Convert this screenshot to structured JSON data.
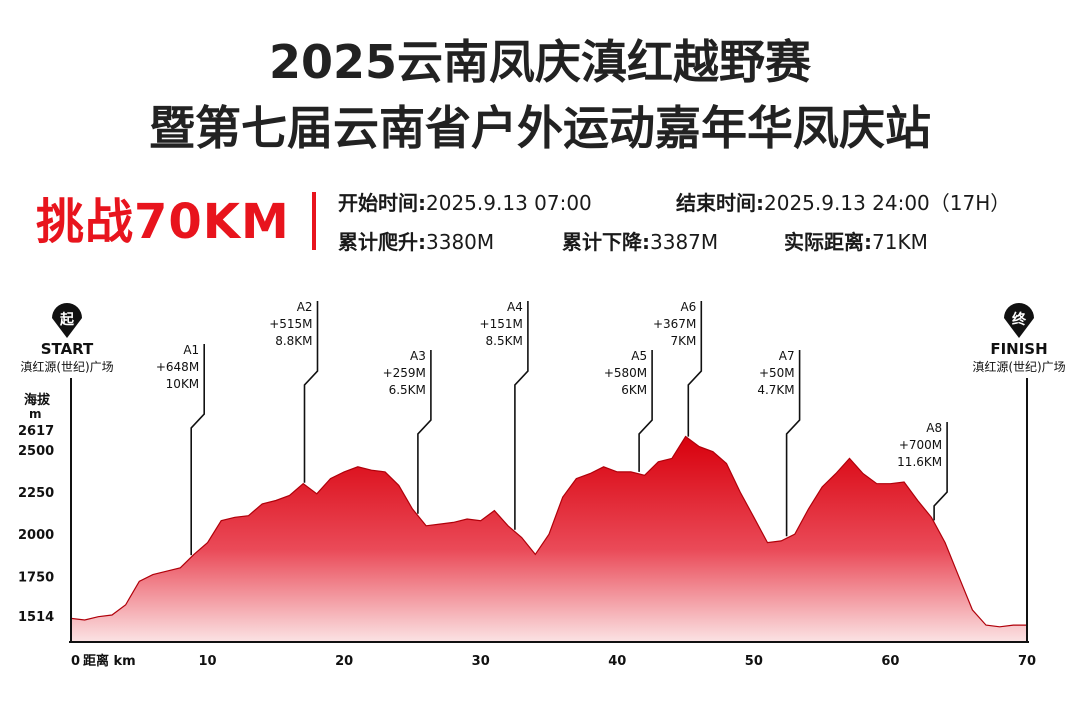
{
  "header": {
    "title_line1": "2025云南凤庆滇红越野赛",
    "title_line2": "暨第七届云南省户外运动嘉年华凤庆站",
    "challenge": "挑战70KM"
  },
  "info": {
    "start_label": "开始时间:",
    "start_value": "2025.9.13 07:00",
    "end_label": "结束时间:",
    "end_value": "2025.9.13  24:00（17H）",
    "gain_label": "累计爬升:",
    "gain_value": "3380M",
    "loss_label": "累计下降:",
    "loss_value": "3387M",
    "dist_label": "实际距离:",
    "dist_value": "71KM"
  },
  "markers": {
    "start_glyph": "起",
    "start_label": "START",
    "start_place": "滇红源(世纪)广场",
    "finish_glyph": "终",
    "finish_label": "FINISH",
    "finish_place": "滇红源(世纪)广场"
  },
  "colors": {
    "accent": "#e8141d",
    "fill_top": "#d8000c",
    "fill_bottom": "#fbe3e4",
    "text": "#1a1a1a"
  },
  "chart_data": {
    "type": "area",
    "title": "",
    "ylabel_lines": [
      "海拔",
      "m"
    ],
    "xlabel": "距离 km",
    "x_ticks": [
      0,
      10,
      20,
      30,
      40,
      50,
      60,
      70
    ],
    "y_ticks": [
      1514,
      1750,
      2000,
      2250,
      2500,
      2617
    ],
    "xlim": [
      0,
      70
    ],
    "ylim": [
      1514,
      2617
    ],
    "grid": false,
    "x": [
      0,
      1,
      2,
      3,
      4,
      5,
      6,
      7,
      8,
      9,
      10,
      11,
      12,
      13,
      14,
      15,
      16,
      17,
      18,
      19,
      20,
      21,
      22,
      23,
      24,
      25,
      26,
      27,
      28,
      29,
      30,
      31,
      32,
      33,
      34,
      35,
      36,
      37,
      38,
      39,
      40,
      41,
      42,
      43,
      44,
      45,
      46,
      47,
      48,
      49,
      50,
      51,
      52,
      53,
      54,
      55,
      56,
      57,
      58,
      59,
      60,
      61,
      62,
      63,
      64,
      65,
      66,
      67,
      68,
      69,
      70
    ],
    "y": [
      1500,
      1490,
      1510,
      1520,
      1580,
      1720,
      1760,
      1780,
      1800,
      1880,
      1950,
      2080,
      2100,
      2110,
      2180,
      2200,
      2230,
      2300,
      2240,
      2330,
      2370,
      2400,
      2380,
      2370,
      2290,
      2150,
      2050,
      2060,
      2070,
      2090,
      2080,
      2140,
      2050,
      1980,
      1880,
      2000,
      2220,
      2330,
      2360,
      2400,
      2370,
      2370,
      2350,
      2430,
      2450,
      2580,
      2520,
      2490,
      2420,
      2250,
      2100,
      1950,
      1960,
      2000,
      2150,
      2280,
      2360,
      2450,
      2360,
      2300,
      2300,
      2310,
      2200,
      2100,
      1950,
      1750,
      1550,
      1460,
      1450,
      1460,
      1460
    ],
    "aid_stations": [
      {
        "name": "A1",
        "gain": "+648M",
        "dist": "10KM",
        "km": 8.8
      },
      {
        "name": "A2",
        "gain": "+515M",
        "dist": "8.8KM",
        "km": 17.1
      },
      {
        "name": "A3",
        "gain": "+259M",
        "dist": "6.5KM",
        "km": 25.4
      },
      {
        "name": "A4",
        "gain": "+151M",
        "dist": "8.5KM",
        "km": 32.5
      },
      {
        "name": "A5",
        "gain": "+580M",
        "dist": "6KM",
        "km": 41.6
      },
      {
        "name": "A6",
        "gain": "+367M",
        "dist": "7KM",
        "km": 45.2
      },
      {
        "name": "A7",
        "gain": "+50M",
        "dist": "4.7KM",
        "km": 52.4
      },
      {
        "name": "A8",
        "gain": "+700M",
        "dist": "11.6KM",
        "km": 63.2
      }
    ]
  }
}
